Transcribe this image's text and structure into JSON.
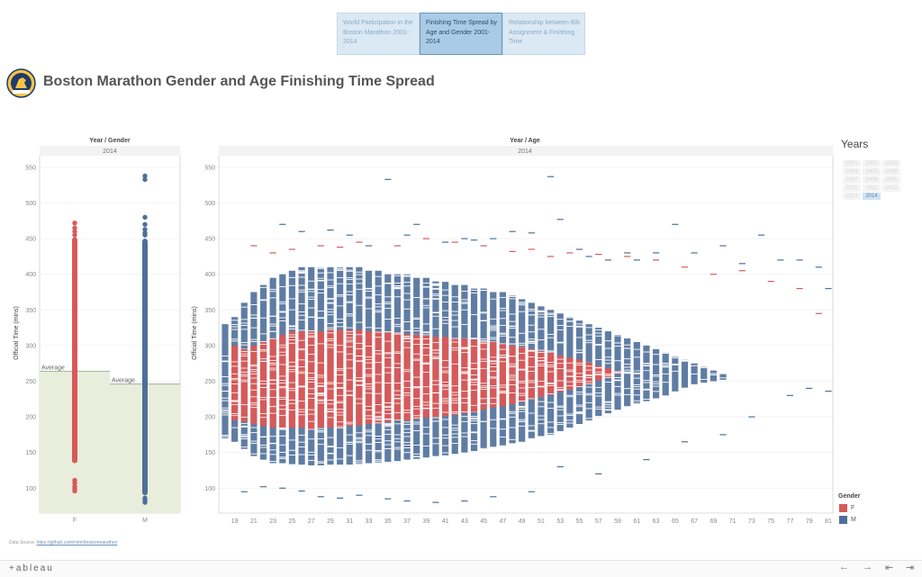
{
  "tabs": [
    {
      "label": "World Participation in the Boston Marathon 2001-2014",
      "active": false
    },
    {
      "label": "Finishing Time Spread by Age and Gender 2001-2014",
      "active": true
    },
    {
      "label": "Relationship between Bib Assignment & Finishing Time",
      "active": false
    }
  ],
  "title": "Boston Marathon Gender and Age Finishing Time Spread",
  "logo_text": "BOSTON MARATHON",
  "source": {
    "prefix": "Data Source: ",
    "link": "https://github.com/rmhh/bostonmarathon"
  },
  "years_panel": {
    "title": "Years",
    "items": [
      "2001",
      "2002",
      "2003",
      "2004",
      "2005",
      "2006",
      "2007",
      "2008",
      "2009",
      "2010",
      "2011",
      "2012",
      "2013",
      "2014"
    ],
    "selected": "2014"
  },
  "legend": {
    "title": "Gender",
    "items": [
      {
        "label": "F",
        "color": "#d65a5a"
      },
      {
        "label": "M",
        "color": "#4e6f9a"
      }
    ]
  },
  "footer": {
    "brand": "+ableau",
    "nav": [
      "←",
      "→",
      "⇤",
      "⇥"
    ]
  },
  "colors": {
    "F": "#d65a5a",
    "M": "#4e6f9a",
    "average_band": "#e9eddc",
    "grid": "#eeeeee"
  },
  "chart_data": [
    {
      "type": "scatter",
      "header": "Year / Gender",
      "subheader": "2014",
      "ylabel": "Official Time (mins)",
      "ylim": [
        65,
        560
      ],
      "yticks": [
        100,
        150,
        200,
        250,
        300,
        350,
        400,
        450,
        500,
        550
      ],
      "categories": [
        "F",
        "M"
      ],
      "series": [
        {
          "name": "F",
          "dense_min": 135,
          "dense_max": 452,
          "outliers": [
            96,
            99,
            102,
            107,
            111,
            455,
            460,
            465,
            472
          ]
        },
        {
          "name": "M",
          "dense_min": 90,
          "dense_max": 450,
          "outliers": [
            80,
            83,
            86,
            455,
            458,
            463,
            470,
            480,
            533,
            538
          ]
        }
      ],
      "averages": [
        {
          "category": "F",
          "value": 264,
          "label": "Average"
        },
        {
          "category": "M",
          "value": 246,
          "label": "Average"
        }
      ]
    },
    {
      "type": "strip",
      "header": "Year / Age",
      "subheader": "2014",
      "ylabel": "Official Time (mins)",
      "ylim": [
        65,
        560
      ],
      "yticks": [
        100,
        150,
        200,
        250,
        300,
        350,
        400,
        450,
        500,
        550
      ],
      "xticks": [
        19,
        21,
        23,
        25,
        27,
        29,
        31,
        33,
        35,
        37,
        39,
        41,
        43,
        45,
        47,
        49,
        51,
        53,
        55,
        57,
        59,
        61,
        63,
        65,
        67,
        69,
        71,
        73,
        75,
        77,
        79,
        81
      ],
      "ages": [
        18,
        19,
        20,
        21,
        22,
        23,
        24,
        25,
        26,
        27,
        28,
        29,
        30,
        31,
        32,
        33,
        34,
        35,
        36,
        37,
        38,
        39,
        40,
        41,
        42,
        43,
        44,
        45,
        46,
        47,
        48,
        49,
        50,
        51,
        52,
        53,
        54,
        55,
        56,
        57,
        58,
        59,
        60,
        61,
        62,
        63,
        64,
        65,
        66,
        67,
        68,
        69,
        70,
        71,
        72,
        73,
        74,
        75,
        76,
        77,
        78,
        79,
        80,
        81
      ],
      "f_range": [
        [
          null,
          null
        ],
        [
          300,
          160
        ],
        [
          295,
          158
        ],
        [
          300,
          155
        ],
        [
          305,
          152
        ],
        [
          310,
          150
        ],
        [
          315,
          150
        ],
        [
          320,
          150
        ],
        [
          320,
          150
        ],
        [
          320,
          148
        ],
        [
          320,
          150
        ],
        [
          322,
          150
        ],
        [
          322,
          150
        ],
        [
          322,
          152
        ],
        [
          322,
          153
        ],
        [
          320,
          155
        ],
        [
          320,
          156
        ],
        [
          318,
          158
        ],
        [
          318,
          160
        ],
        [
          316,
          160
        ],
        [
          315,
          162
        ],
        [
          314,
          164
        ],
        [
          312,
          165
        ],
        [
          312,
          166
        ],
        [
          310,
          168
        ],
        [
          310,
          170
        ],
        [
          308,
          172
        ],
        [
          306,
          175
        ],
        [
          305,
          178
        ],
        [
          303,
          180
        ],
        [
          300,
          183
        ],
        [
          298,
          186
        ],
        [
          295,
          190
        ],
        [
          292,
          193
        ],
        [
          290,
          196
        ],
        [
          286,
          200
        ],
        [
          283,
          203
        ],
        [
          280,
          207
        ],
        [
          276,
          212
        ],
        [
          272,
          216
        ],
        [
          268,
          220
        ],
        [
          264,
          225
        ],
        [
          260,
          230
        ],
        [
          255,
          235
        ],
        [
          250,
          240
        ],
        [
          245,
          245
        ],
        [
          null,
          null
        ],
        [
          null,
          null
        ],
        [
          null,
          null
        ],
        [
          null,
          null
        ],
        [
          null,
          null
        ],
        [
          null,
          null
        ],
        [
          null,
          null
        ],
        [
          null,
          null
        ],
        [
          null,
          null
        ],
        [
          null,
          null
        ],
        [
          null,
          null
        ],
        [
          null,
          null
        ],
        [
          null,
          null
        ],
        [
          null,
          null
        ],
        [
          null,
          null
        ],
        [
          null,
          null
        ],
        [
          null,
          null
        ],
        [
          null,
          null
        ]
      ],
      "m_range": [
        [
          330,
          170
        ],
        [
          340,
          165
        ],
        [
          360,
          155
        ],
        [
          375,
          145
        ],
        [
          385,
          140
        ],
        [
          395,
          135
        ],
        [
          400,
          135
        ],
        [
          405,
          133
        ],
        [
          410,
          133
        ],
        [
          410,
          132
        ],
        [
          410,
          132
        ],
        [
          410,
          133
        ],
        [
          410,
          133
        ],
        [
          410,
          133
        ],
        [
          410,
          134
        ],
        [
          405,
          135
        ],
        [
          405,
          136
        ],
        [
          400,
          137
        ],
        [
          400,
          138
        ],
        [
          400,
          140
        ],
        [
          395,
          141
        ],
        [
          395,
          143
        ],
        [
          390,
          145
        ],
        [
          390,
          146
        ],
        [
          385,
          148
        ],
        [
          385,
          150
        ],
        [
          380,
          152
        ],
        [
          380,
          155
        ],
        [
          375,
          158
        ],
        [
          375,
          160
        ],
        [
          370,
          163
        ],
        [
          365,
          165
        ],
        [
          360,
          170
        ],
        [
          355,
          173
        ],
        [
          350,
          175
        ],
        [
          345,
          180
        ],
        [
          340,
          185
        ],
        [
          335,
          190
        ],
        [
          330,
          195
        ],
        [
          325,
          200
        ],
        [
          320,
          205
        ],
        [
          315,
          210
        ],
        [
          310,
          215
        ],
        [
          305,
          218
        ],
        [
          300,
          222
        ],
        [
          295,
          226
        ],
        [
          290,
          230
        ],
        [
          285,
          235
        ],
        [
          280,
          240
        ],
        [
          275,
          245
        ],
        [
          270,
          248
        ],
        [
          265,
          250
        ],
        [
          260,
          252
        ],
        [
          255,
          255
        ],
        [
          250,
          258
        ],
        [
          245,
          260
        ],
        [
          240,
          262
        ],
        [
          235,
          265
        ],
        [
          230,
          268
        ],
        [
          225,
          270
        ],
        [
          222,
          272
        ],
        [
          220,
          274
        ],
        [
          218,
          276
        ],
        [
          215,
          278
        ]
      ],
      "m_outliers": [
        [
          24,
          470
        ],
        [
          26,
          460
        ],
        [
          29,
          462
        ],
        [
          31,
          455
        ],
        [
          33,
          440
        ],
        [
          35,
          533
        ],
        [
          37,
          455
        ],
        [
          38,
          470
        ],
        [
          41,
          445
        ],
        [
          43,
          450
        ],
        [
          44,
          448
        ],
        [
          46,
          450
        ],
        [
          48,
          460
        ],
        [
          50,
          458
        ],
        [
          52,
          537
        ],
        [
          53,
          477
        ],
        [
          55,
          435
        ],
        [
          56,
          425
        ],
        [
          58,
          420
        ],
        [
          60,
          430
        ],
        [
          61,
          420
        ],
        [
          63,
          430
        ],
        [
          65,
          470
        ],
        [
          67,
          430
        ],
        [
          70,
          440
        ],
        [
          72,
          415
        ],
        [
          74,
          455
        ],
        [
          76,
          420
        ],
        [
          78,
          420
        ],
        [
          80,
          410
        ],
        [
          81,
          380
        ],
        [
          20,
          95
        ],
        [
          22,
          102
        ],
        [
          24,
          100
        ],
        [
          26,
          96
        ],
        [
          28,
          88
        ],
        [
          30,
          86
        ],
        [
          32,
          90
        ],
        [
          35,
          85
        ],
        [
          37,
          82
        ],
        [
          40,
          80
        ],
        [
          43,
          82
        ],
        [
          46,
          88
        ],
        [
          50,
          95
        ],
        [
          53,
          130
        ],
        [
          57,
          120
        ],
        [
          62,
          140
        ],
        [
          66,
          165
        ],
        [
          70,
          175
        ],
        [
          73,
          200
        ],
        [
          77,
          230
        ],
        [
          79,
          240
        ],
        [
          81,
          236
        ]
      ],
      "f_outliers": [
        [
          21,
          440
        ],
        [
          23,
          430
        ],
        [
          25,
          435
        ],
        [
          28,
          440
        ],
        [
          30,
          438
        ],
        [
          32,
          445
        ],
        [
          36,
          440
        ],
        [
          39,
          450
        ],
        [
          42,
          445
        ],
        [
          45,
          440
        ],
        [
          48,
          432
        ],
        [
          50,
          435
        ],
        [
          52,
          425
        ],
        [
          54,
          430
        ],
        [
          57,
          428
        ],
        [
          60,
          425
        ],
        [
          63,
          420
        ],
        [
          66,
          410
        ],
        [
          69,
          400
        ],
        [
          72,
          405
        ],
        [
          75,
          390
        ],
        [
          78,
          380
        ],
        [
          80,
          345
        ]
      ]
    }
  ]
}
